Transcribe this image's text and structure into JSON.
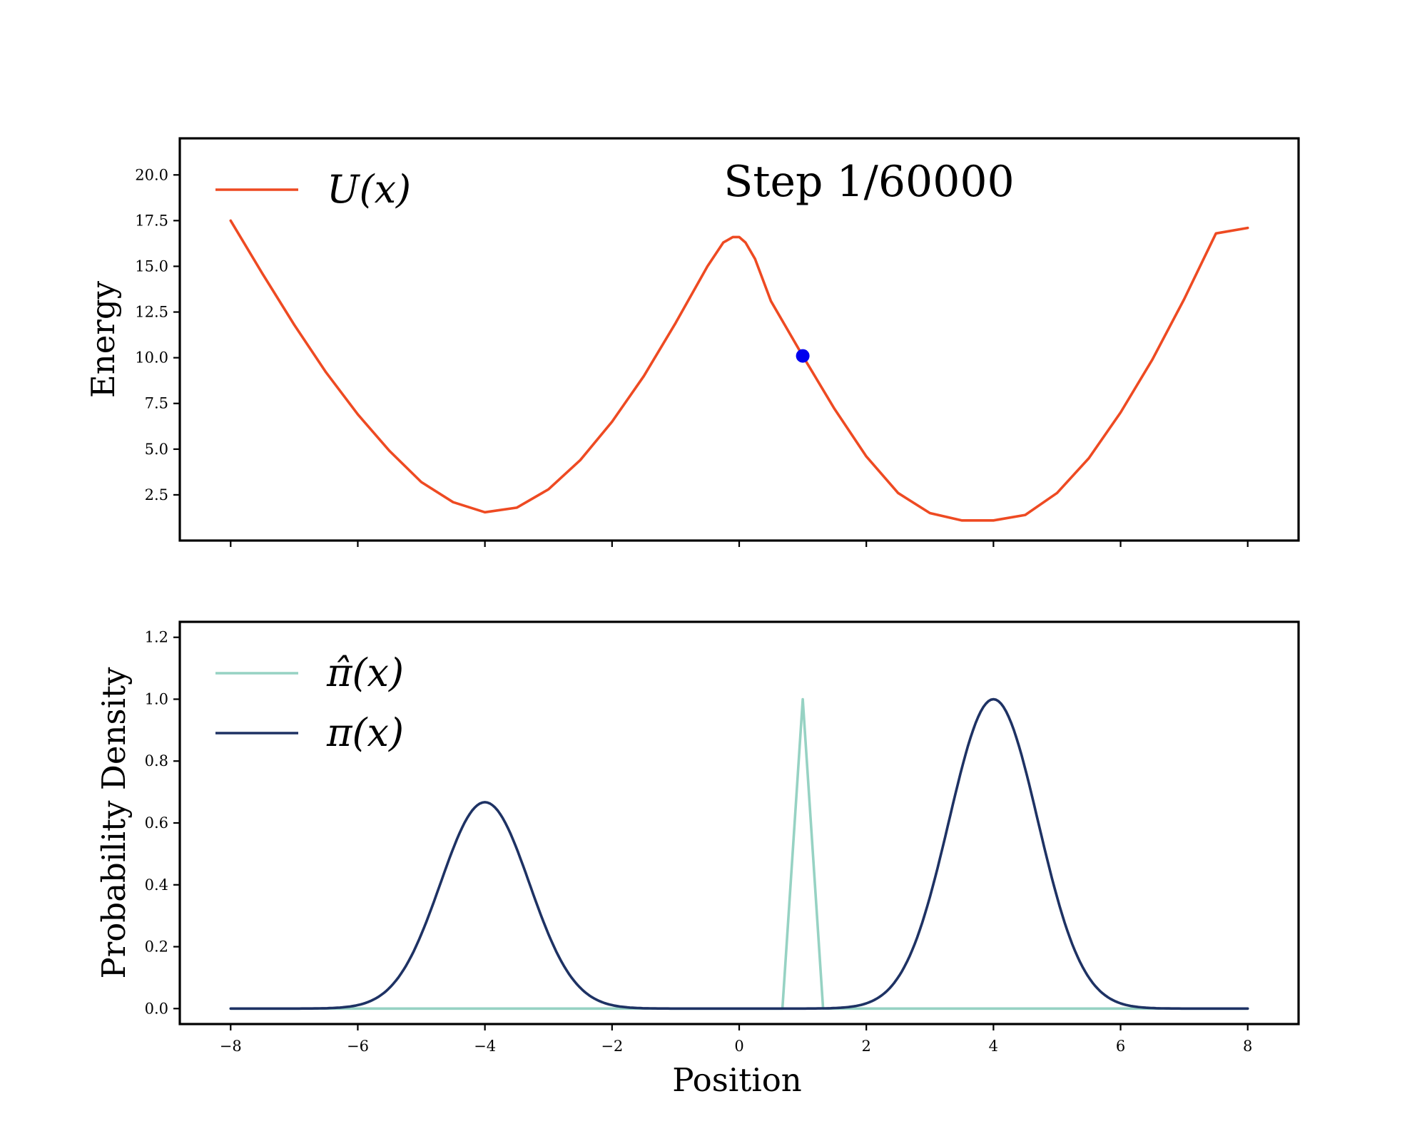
{
  "chart_data": [
    {
      "type": "line",
      "ylabel": "Energy",
      "xlim": [
        -8.8,
        8.8
      ],
      "ylim": [
        0.0,
        22.0
      ],
      "yticks": [
        2.5,
        5.0,
        7.5,
        10.0,
        12.5,
        15.0,
        17.5,
        20.0
      ],
      "ytick_labels": [
        "2.5",
        "5.0",
        "7.5",
        "10.0",
        "12.5",
        "15.0",
        "17.5",
        "20.0"
      ],
      "xticks": [
        -8,
        -6,
        -4,
        -2,
        0,
        2,
        4,
        6,
        8
      ],
      "annotation": "Step 1/60000",
      "legend_placement": "top-left",
      "series": [
        {
          "name": "U(x)",
          "color": "#ee4a22",
          "x": [
            -8,
            -7.5,
            -7,
            -6.5,
            -6,
            -5.5,
            -5,
            -4.5,
            -4,
            -3.5,
            -3,
            -2.5,
            -2,
            -1.5,
            -1,
            -0.5,
            -0.25,
            -0.1,
            0,
            0.1,
            0.25,
            0.5,
            1,
            1.5,
            2,
            2.5,
            3,
            3.5,
            4,
            4.5,
            5,
            5.5,
            6,
            6.5,
            7,
            7.5,
            8
          ],
          "y": [
            17.5,
            14.6,
            11.8,
            9.2,
            6.9,
            4.9,
            3.2,
            2.1,
            1.55,
            1.8,
            2.8,
            4.4,
            6.5,
            9.0,
            11.9,
            15.0,
            16.3,
            16.6,
            16.6,
            16.3,
            15.4,
            13.1,
            10.1,
            7.2,
            4.6,
            2.6,
            1.5,
            1.1,
            1.1,
            1.4,
            2.6,
            4.5,
            7.0,
            9.9,
            13.2,
            16.8,
            17.1
          ]
        }
      ],
      "marker": {
        "x": 1.0,
        "y": 10.1,
        "color": "#0000ee"
      }
    },
    {
      "type": "line",
      "xlabel": "Position",
      "ylabel": "Probability Density",
      "xlim": [
        -8.8,
        8.8
      ],
      "ylim": [
        -0.05,
        1.25
      ],
      "yticks": [
        0.0,
        0.2,
        0.4,
        0.6,
        0.8,
        1.0,
        1.2
      ],
      "ytick_labels": [
        "0.0",
        "0.2",
        "0.4",
        "0.6",
        "0.8",
        "1.0",
        "1.2"
      ],
      "xticks": [
        -8,
        -6,
        -4,
        -2,
        0,
        2,
        4,
        6,
        8
      ],
      "xtick_labels": [
        "−8",
        "−6",
        "−4",
        "−2",
        "0",
        "2",
        "4",
        "6",
        "8"
      ],
      "legend_placement": "top-left",
      "series": [
        {
          "name": "π̂(x)",
          "color": "#96d2c3",
          "x": [
            -8,
            0.68,
            1.0,
            1.32,
            8
          ],
          "y": [
            0.0,
            0.0,
            1.0,
            0.0,
            0.0
          ]
        },
        {
          "name": "π(x)",
          "color": "#1e3264",
          "peaks": [
            {
              "center": -4,
              "height": 0.667,
              "sigma": 0.7
            },
            {
              "center": 4,
              "height": 1.0,
              "sigma": 0.7
            }
          ],
          "x": [
            -8,
            -6,
            -5,
            -4.5,
            -4,
            -3.5,
            -3,
            -2,
            0,
            2,
            3,
            3.5,
            4,
            4.5,
            5,
            6,
            8
          ],
          "y": [
            0.0,
            0.011,
            0.24,
            0.51,
            0.667,
            0.51,
            0.24,
            0.011,
            0.0,
            0.017,
            0.36,
            0.77,
            1.0,
            0.77,
            0.36,
            0.017,
            0.0
          ]
        }
      ]
    }
  ]
}
